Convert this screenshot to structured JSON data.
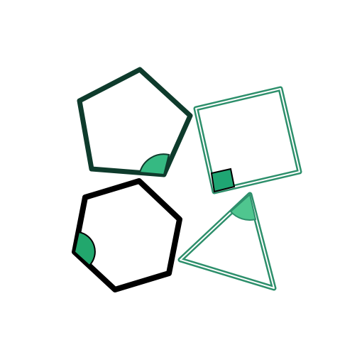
{
  "diagram": {
    "type": "geometric-shapes-with-angle-markers",
    "shapes": [
      {
        "shape": "pentagon",
        "angle_marker": "arc",
        "stroke_color": "#0e3b2c",
        "fill_color": "#ffffff",
        "marker_color": "#35b982"
      },
      {
        "shape": "square",
        "angle_marker": "right-angle-square",
        "stroke_color": "#2d8f6b",
        "fill_color": "#ffffff",
        "marker_color": "#1fa673"
      },
      {
        "shape": "hexagon",
        "angle_marker": "arc",
        "stroke_color": "#000000",
        "fill_color": "#ffffff",
        "marker_color": "#22a76d"
      },
      {
        "shape": "triangle",
        "angle_marker": "arc",
        "stroke_color": "#2d8f6b",
        "fill_color": "#ffffff",
        "marker_color": "#4fc68f"
      }
    ]
  }
}
